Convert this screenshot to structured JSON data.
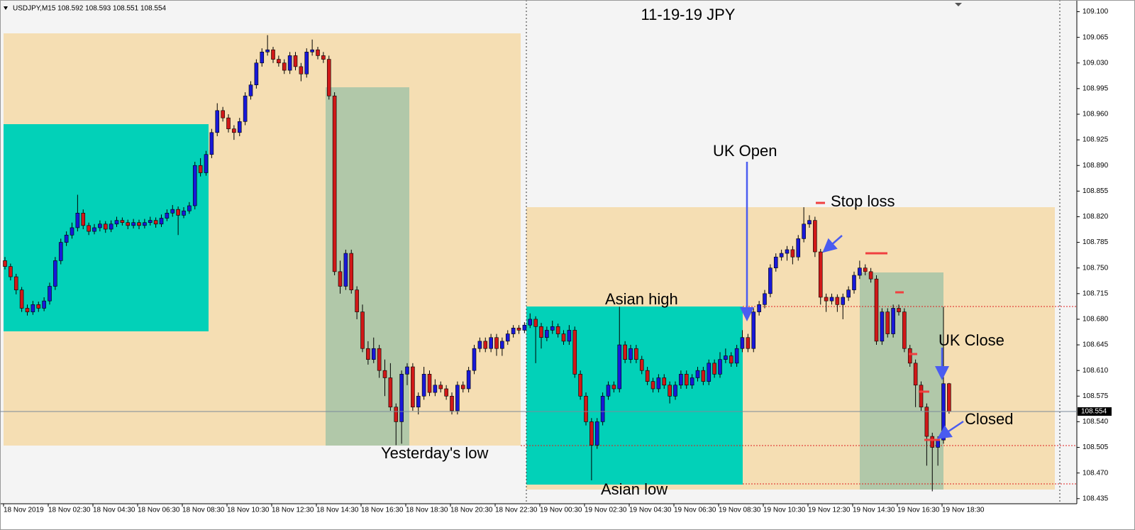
{
  "chart_data": {
    "type": "candlestick",
    "header": "USDJPY,M15  108.592 108.593 108.551 108.554",
    "title": "11-19-19  JPY",
    "annotations": [
      "UK Open",
      "Stop loss",
      "Asian high",
      "UK Close",
      "Closed",
      "Yesterday's low",
      "Asian low"
    ],
    "up_color": "#1818d8",
    "down_color": "#d01818",
    "ylim": [
      108.428,
      109.116
    ],
    "yticks": [
      {
        "value": 109.1,
        "label": "109.100"
      },
      109.065,
      {
        "value": 109.03,
        "label": "109.030"
      },
      108.995,
      {
        "value": 108.96,
        "label": "108.960"
      },
      108.925,
      {
        "value": 108.89,
        "label": "108.890"
      },
      108.855,
      {
        "value": 108.82,
        "label": "108.820"
      },
      108.785,
      {
        "value": 108.75,
        "label": "108.750"
      },
      108.715,
      {
        "value": 108.68,
        "label": "108.680"
      },
      108.645,
      {
        "value": 108.61,
        "label": "108.610"
      },
      108.575,
      {
        "value": 108.54,
        "label": "108.540"
      },
      108.505,
      {
        "value": 108.47,
        "label": "108.470"
      },
      108.435
    ],
    "xtick_labels": [
      "18 Nov 2019",
      "18 Nov 02:30",
      "18 Nov 04:30",
      "18 Nov 06:30",
      "18 Nov 08:30",
      "18 Nov 10:30",
      "18 Nov 12:30",
      "18 Nov 14:30",
      "18 Nov 16:30",
      "18 Nov 18:30",
      "18 Nov 20:30",
      "18 Nov 22:30",
      "19 Nov 00:30",
      "19 Nov 02:30",
      "19 Nov 04:30",
      "19 Nov 06:30",
      "19 Nov 08:30",
      "19 Nov 10:30",
      "19 Nov 12:30",
      "19 Nov 14:30",
      "19 Nov 16:30",
      "19 Nov 18:30"
    ],
    "ohlc": [
      [
        108.76,
        108.765,
        108.748,
        108.752
      ],
      [
        108.752,
        108.756,
        108.733,
        108.738
      ],
      [
        108.738,
        108.742,
        108.714,
        108.72
      ],
      [
        108.72,
        108.724,
        108.69,
        108.695
      ],
      [
        108.695,
        108.7,
        108.685,
        108.69
      ],
      [
        108.69,
        108.705,
        108.686,
        108.7
      ],
      [
        108.7,
        108.704,
        108.69,
        108.695
      ],
      [
        108.695,
        108.71,
        108.691,
        108.705
      ],
      [
        108.705,
        108.73,
        108.7,
        108.725
      ],
      [
        108.725,
        108.765,
        108.72,
        108.76
      ],
      [
        108.76,
        108.79,
        108.755,
        108.785
      ],
      [
        108.785,
        108.8,
        108.78,
        108.795
      ],
      [
        108.795,
        108.812,
        108.79,
        108.805
      ],
      [
        108.805,
        108.85,
        108.8,
        108.825
      ],
      [
        108.825,
        108.83,
        108.803,
        108.808
      ],
      [
        108.808,
        108.812,
        108.795,
        108.8
      ],
      [
        108.8,
        108.81,
        108.796,
        108.805
      ],
      [
        108.805,
        108.815,
        108.8,
        108.81
      ],
      [
        108.81,
        108.814,
        108.798,
        108.803
      ],
      [
        108.803,
        108.815,
        108.799,
        108.81
      ],
      [
        108.81,
        108.82,
        108.806,
        108.815
      ],
      [
        108.815,
        108.819,
        108.808,
        108.812
      ],
      [
        108.812,
        108.816,
        108.803,
        108.808
      ],
      [
        108.808,
        108.817,
        108.804,
        108.812
      ],
      [
        108.812,
        108.816,
        108.803,
        108.808
      ],
      [
        108.808,
        108.817,
        108.804,
        108.812
      ],
      [
        108.812,
        108.82,
        108.808,
        108.815
      ],
      [
        108.815,
        108.819,
        108.805,
        108.81
      ],
      [
        108.81,
        108.823,
        108.806,
        108.818
      ],
      [
        108.818,
        108.83,
        108.814,
        108.825
      ],
      [
        108.825,
        108.836,
        108.82,
        108.83
      ],
      [
        108.83,
        108.834,
        108.795,
        108.822
      ],
      [
        108.822,
        108.833,
        108.818,
        108.828
      ],
      [
        108.828,
        108.84,
        108.824,
        108.835
      ],
      [
        108.835,
        108.895,
        108.83,
        108.89
      ],
      [
        108.89,
        108.9,
        108.875,
        108.88
      ],
      [
        108.88,
        108.91,
        108.876,
        108.905
      ],
      [
        108.905,
        108.94,
        108.9,
        108.935
      ],
      [
        108.935,
        108.975,
        108.93,
        108.965
      ],
      [
        108.965,
        108.97,
        108.95,
        108.955
      ],
      [
        108.955,
        108.96,
        108.935,
        108.94
      ],
      [
        108.94,
        108.945,
        108.925,
        108.935
      ],
      [
        108.935,
        108.955,
        108.93,
        108.95
      ],
      [
        108.95,
        108.99,
        108.945,
        108.985
      ],
      [
        108.985,
        109.005,
        108.98,
        109.0
      ],
      [
        109.0,
        109.035,
        108.995,
        109.03
      ],
      [
        109.03,
        109.05,
        109.025,
        109.045
      ],
      [
        109.045,
        109.068,
        109.04,
        109.048
      ],
      [
        109.048,
        109.052,
        109.03,
        109.035
      ],
      [
        109.035,
        109.04,
        109.025,
        109.03
      ],
      [
        109.03,
        109.035,
        109.015,
        109.02
      ],
      [
        109.02,
        109.045,
        109.015,
        109.04
      ],
      [
        109.04,
        109.045,
        109.02,
        109.025
      ],
      [
        109.025,
        109.03,
        109.005,
        109.015
      ],
      [
        109.015,
        109.05,
        109.01,
        109.045
      ],
      [
        109.045,
        109.062,
        109.04,
        109.048
      ],
      [
        109.048,
        109.052,
        109.035,
        109.04
      ],
      [
        109.04,
        109.045,
        109.03,
        109.035
      ],
      [
        109.035,
        109.04,
        108.98,
        108.985
      ],
      [
        108.985,
        108.99,
        108.74,
        108.745
      ],
      [
        108.745,
        108.76,
        108.715,
        108.725
      ],
      [
        108.725,
        108.775,
        108.72,
        108.77
      ],
      [
        108.77,
        108.775,
        108.715,
        108.72
      ],
      [
        108.72,
        108.725,
        108.68,
        108.69
      ],
      [
        108.69,
        108.7,
        108.635,
        108.64
      ],
      [
        108.64,
        108.65,
        108.618,
        108.625
      ],
      [
        108.625,
        108.655,
        108.62,
        108.64
      ],
      [
        108.64,
        108.645,
        108.6,
        108.61
      ],
      [
        108.61,
        108.625,
        108.575,
        108.6
      ],
      [
        108.6,
        108.62,
        108.555,
        108.56
      ],
      [
        108.56,
        108.565,
        108.508,
        108.54
      ],
      [
        108.54,
        108.61,
        108.51,
        108.605
      ],
      [
        108.605,
        108.62,
        108.59,
        108.615
      ],
      [
        108.615,
        108.62,
        108.555,
        108.56
      ],
      [
        108.56,
        108.58,
        108.55,
        108.575
      ],
      [
        108.575,
        108.615,
        108.57,
        108.605
      ],
      [
        108.605,
        108.61,
        108.575,
        108.58
      ],
      [
        108.58,
        108.598,
        108.575,
        108.59
      ],
      [
        108.59,
        108.595,
        108.58,
        108.585
      ],
      [
        108.585,
        108.59,
        108.57,
        108.575
      ],
      [
        108.575,
        108.58,
        108.55,
        108.555
      ],
      [
        108.555,
        108.595,
        108.55,
        108.59
      ],
      [
        108.59,
        108.595,
        108.58,
        108.585
      ],
      [
        108.585,
        108.615,
        108.58,
        108.61
      ],
      [
        108.61,
        108.645,
        108.605,
        108.64
      ],
      [
        108.64,
        108.655,
        108.635,
        108.65
      ],
      [
        108.65,
        108.655,
        108.635,
        108.64
      ],
      [
        108.64,
        108.66,
        108.635,
        108.655
      ],
      [
        108.655,
        108.66,
        108.63,
        108.64
      ],
      [
        108.64,
        108.655,
        108.63,
        108.65
      ],
      [
        108.65,
        108.665,
        108.645,
        108.66
      ],
      [
        108.66,
        108.672,
        108.655,
        108.668
      ],
      [
        108.668,
        108.672,
        108.66,
        108.665
      ],
      [
        108.665,
        108.676,
        108.661,
        108.672
      ],
      [
        108.672,
        108.688,
        108.668,
        108.68
      ],
      [
        108.68,
        108.684,
        108.62,
        108.67
      ],
      [
        108.67,
        108.675,
        108.64,
        108.655
      ],
      [
        108.655,
        108.67,
        108.65,
        108.665
      ],
      [
        108.665,
        108.678,
        108.66,
        108.67
      ],
      [
        108.67,
        108.674,
        108.655,
        108.66
      ],
      [
        108.66,
        108.665,
        108.645,
        108.65
      ],
      [
        108.65,
        108.672,
        108.645,
        108.665
      ],
      [
        108.665,
        108.67,
        108.6,
        108.605
      ],
      [
        108.605,
        108.61,
        108.57,
        108.575
      ],
      [
        108.575,
        108.58,
        108.535,
        108.54
      ],
      [
        108.54,
        108.545,
        108.46,
        108.508
      ],
      [
        108.508,
        108.545,
        108.503,
        108.54
      ],
      [
        108.54,
        108.58,
        108.535,
        108.575
      ],
      [
        108.575,
        108.595,
        108.57,
        108.59
      ],
      [
        108.59,
        108.595,
        108.58,
        108.585
      ],
      [
        108.585,
        108.697,
        108.58,
        108.645
      ],
      [
        108.645,
        108.65,
        108.62,
        108.625
      ],
      [
        108.625,
        108.645,
        108.62,
        108.64
      ],
      [
        108.64,
        108.645,
        108.62,
        108.625
      ],
      [
        108.625,
        108.63,
        108.605,
        108.61
      ],
      [
        108.61,
        108.615,
        108.59,
        108.595
      ],
      [
        108.595,
        108.6,
        108.58,
        108.585
      ],
      [
        108.585,
        108.605,
        108.58,
        108.6
      ],
      [
        108.6,
        108.605,
        108.585,
        108.59
      ],
      [
        108.59,
        108.595,
        108.565,
        108.575
      ],
      [
        108.575,
        108.595,
        108.57,
        108.59
      ],
      [
        108.59,
        108.61,
        108.585,
        108.605
      ],
      [
        108.605,
        108.61,
        108.585,
        108.59
      ],
      [
        108.59,
        108.605,
        108.585,
        108.6
      ],
      [
        108.6,
        108.615,
        108.595,
        108.61
      ],
      [
        108.61,
        108.615,
        108.59,
        108.595
      ],
      [
        108.595,
        108.625,
        108.59,
        108.62
      ],
      [
        108.62,
        108.625,
        108.6,
        108.605
      ],
      [
        108.605,
        108.635,
        108.6,
        108.625
      ],
      [
        108.625,
        108.64,
        108.62,
        108.63
      ],
      [
        108.63,
        108.635,
        108.615,
        108.62
      ],
      [
        108.62,
        108.645,
        108.615,
        108.64
      ],
      [
        108.64,
        108.665,
        108.635,
        108.655
      ],
      [
        108.655,
        108.66,
        108.635,
        108.64
      ],
      [
        108.64,
        108.695,
        108.635,
        108.69
      ],
      [
        108.69,
        108.705,
        108.685,
        108.7
      ],
      [
        108.7,
        108.72,
        108.695,
        108.715
      ],
      [
        108.715,
        108.755,
        108.71,
        108.75
      ],
      [
        108.75,
        108.77,
        108.745,
        108.765
      ],
      [
        108.765,
        108.775,
        108.76,
        108.77
      ],
      [
        108.77,
        108.78,
        108.76,
        108.775
      ],
      [
        108.775,
        108.78,
        108.755,
        108.765
      ],
      [
        108.765,
        108.795,
        108.76,
        108.79
      ],
      [
        108.79,
        108.833,
        108.785,
        108.81
      ],
      [
        108.81,
        108.822,
        108.805,
        108.815
      ],
      [
        108.815,
        108.82,
        108.765,
        108.772
      ],
      [
        108.772,
        108.776,
        108.7,
        108.71
      ],
      [
        108.71,
        108.715,
        108.69,
        108.705
      ],
      [
        108.705,
        108.715,
        108.7,
        108.71
      ],
      [
        108.71,
        108.714,
        108.69,
        108.7
      ],
      [
        108.7,
        108.715,
        108.68,
        108.71
      ],
      [
        108.71,
        108.725,
        108.705,
        108.72
      ],
      [
        108.72,
        108.745,
        108.715,
        108.74
      ],
      [
        108.74,
        108.76,
        108.735,
        108.75
      ],
      [
        108.75,
        108.755,
        108.74,
        108.745
      ],
      [
        108.745,
        108.75,
        108.73,
        108.735
      ],
      [
        108.735,
        108.74,
        108.645,
        108.65
      ],
      [
        108.65,
        108.695,
        108.645,
        108.69
      ],
      [
        108.69,
        108.695,
        108.655,
        108.66
      ],
      [
        108.66,
        108.7,
        108.655,
        108.695
      ],
      [
        108.695,
        108.7,
        108.685,
        108.69
      ],
      [
        108.69,
        108.695,
        108.635,
        108.64
      ],
      [
        108.64,
        108.645,
        108.615,
        108.62
      ],
      [
        108.62,
        108.625,
        108.56,
        108.59
      ],
      [
        108.59,
        108.595,
        108.555,
        108.56
      ],
      [
        108.56,
        108.565,
        108.48,
        108.52
      ],
      [
        108.52,
        108.525,
        108.445,
        108.505
      ],
      [
        108.505,
        108.52,
        108.48,
        108.515
      ],
      [
        108.515,
        108.697,
        108.51,
        108.592
      ],
      [
        108.592,
        108.593,
        108.551,
        108.554
      ]
    ]
  }
}
